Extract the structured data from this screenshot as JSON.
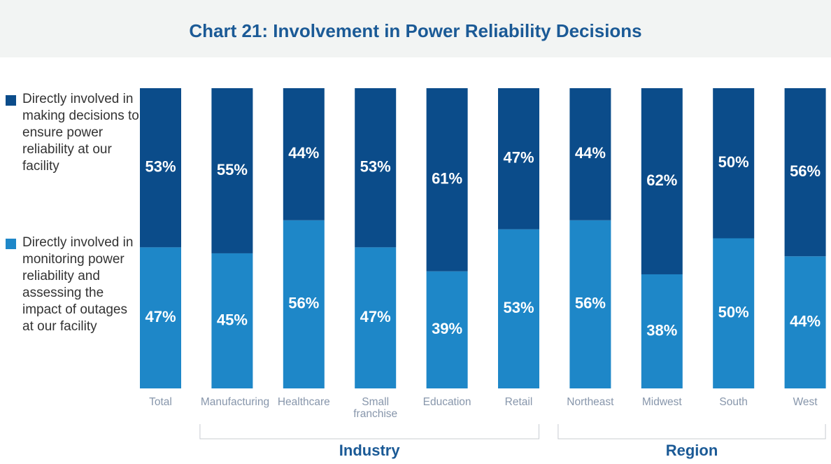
{
  "chart_data": {
    "type": "stacked_bar",
    "title": "Chart 21: Involvement in Power Reliability Decisions",
    "categories": [
      "Total",
      "Manufacturing",
      "Healthcare",
      "Small franchise",
      "Education",
      "Retail",
      "Northeast",
      "Midwest",
      "South",
      "West"
    ],
    "ylim": [
      0,
      100
    ],
    "legend": "left",
    "series": [
      {
        "name": "Directly involved in monitoring power reliability and assessing the impact of outages at our facility",
        "color": "#1e87c8",
        "values": [
          47,
          45,
          56,
          47,
          39,
          53,
          56,
          38,
          50,
          44
        ],
        "value_labels": [
          "47%",
          "45%",
          "56%",
          "47%",
          "39%",
          "53%",
          "56%",
          "38%",
          "50%",
          "44%"
        ]
      },
      {
        "name": "Directly involved in making decisions to ensure power reliability at our facility",
        "color": "#0b4c8a",
        "values": [
          53,
          55,
          44,
          53,
          61,
          47,
          44,
          62,
          50,
          56
        ],
        "value_labels": [
          "53%",
          "55%",
          "44%",
          "53%",
          "61%",
          "47%",
          "44%",
          "62%",
          "50%",
          "56%"
        ]
      }
    ],
    "groups": [
      {
        "name": "Industry",
        "first": 1,
        "last": 5
      },
      {
        "name": "Region",
        "first": 6,
        "last": 9
      }
    ]
  }
}
